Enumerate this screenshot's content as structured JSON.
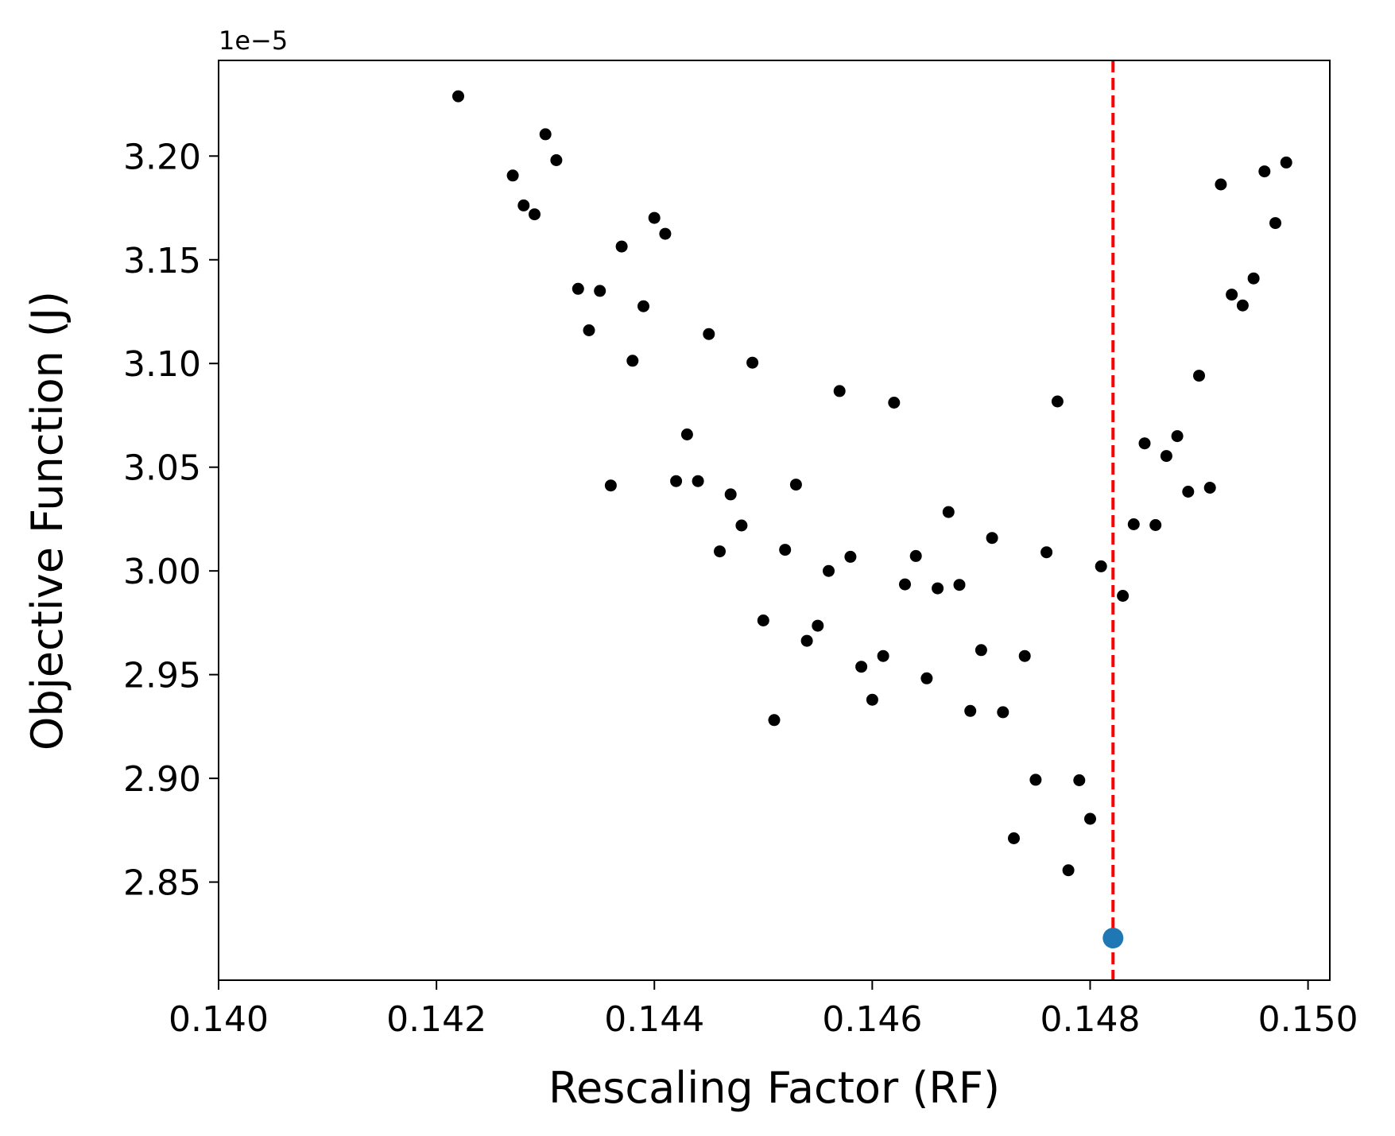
{
  "chart_data": {
    "type": "scatter",
    "title": "",
    "xlabel": "Rescaling Factor (RF)",
    "ylabel": "Objective Function (J)",
    "y_offset_text": "1e−5",
    "y_scale_factor": 1e-05,
    "xlim": [
      0.14,
      0.1502
    ],
    "ylim": [
      2.8027,
      3.2461
    ],
    "x_ticks": [
      0.14,
      0.142,
      0.144,
      0.146,
      0.148,
      0.15
    ],
    "x_tick_labels": [
      "0.140",
      "0.142",
      "0.144",
      "0.146",
      "0.148",
      "0.150"
    ],
    "y_ticks": [
      2.85,
      2.9,
      2.95,
      3.0,
      3.05,
      3.1,
      3.15,
      3.2
    ],
    "y_tick_labels": [
      "2.85",
      "2.90",
      "2.95",
      "3.00",
      "3.05",
      "3.10",
      "3.15",
      "3.20"
    ],
    "grid": false,
    "series": [
      {
        "color": "#000000",
        "points": [
          [
            0.1422,
            3.2288
          ],
          [
            0.1427,
            3.1906
          ],
          [
            0.1428,
            3.1762
          ],
          [
            0.1429,
            3.1719
          ],
          [
            0.143,
            3.2105
          ],
          [
            0.1431,
            3.198
          ],
          [
            0.1433,
            3.136
          ],
          [
            0.1434,
            3.116
          ],
          [
            0.1435,
            3.135
          ],
          [
            0.1436,
            3.0412
          ],
          [
            0.1437,
            3.1564
          ],
          [
            0.1438,
            3.1013
          ],
          [
            0.1439,
            3.1276
          ],
          [
            0.144,
            3.1702
          ],
          [
            0.1441,
            3.1625
          ],
          [
            0.1442,
            3.0433
          ],
          [
            0.1443,
            3.0658
          ],
          [
            0.1444,
            3.0433
          ],
          [
            0.1445,
            3.1142
          ],
          [
            0.1446,
            3.0094
          ],
          [
            0.1447,
            3.0369
          ],
          [
            0.1448,
            3.0219
          ],
          [
            0.1449,
            3.1004
          ],
          [
            0.145,
            2.9761
          ],
          [
            0.1451,
            2.9281
          ],
          [
            0.1452,
            3.0102
          ],
          [
            0.1453,
            3.0416
          ],
          [
            0.1454,
            2.9663
          ],
          [
            0.1455,
            2.9736
          ],
          [
            0.1456,
            3.0
          ],
          [
            0.1457,
            3.0867
          ],
          [
            0.1458,
            3.0068
          ],
          [
            0.1459,
            2.9538
          ],
          [
            0.146,
            2.9379
          ],
          [
            0.1461,
            2.959
          ],
          [
            0.1462,
            3.0811
          ],
          [
            0.1463,
            2.9935
          ],
          [
            0.1464,
            3.0072
          ],
          [
            0.1465,
            2.9482
          ],
          [
            0.1466,
            2.9916
          ],
          [
            0.1467,
            3.0284
          ],
          [
            0.1468,
            2.9933
          ],
          [
            0.1469,
            2.9325
          ],
          [
            0.147,
            2.9618
          ],
          [
            0.1471,
            3.0159
          ],
          [
            0.1472,
            2.9319
          ],
          [
            0.1473,
            2.8711
          ],
          [
            0.1474,
            2.959
          ],
          [
            0.1475,
            2.8993
          ],
          [
            0.1476,
            3.009
          ],
          [
            0.1477,
            3.0817
          ],
          [
            0.1478,
            2.8557
          ],
          [
            0.1479,
            2.8991
          ],
          [
            0.148,
            2.8805
          ],
          [
            0.1481,
            3.0022
          ],
          [
            0.1483,
            2.988
          ],
          [
            0.1484,
            3.0225
          ],
          [
            0.1485,
            3.0615
          ],
          [
            0.1486,
            3.0221
          ],
          [
            0.1487,
            3.0554
          ],
          [
            0.1488,
            3.065
          ],
          [
            0.1489,
            3.0382
          ],
          [
            0.149,
            3.0941
          ],
          [
            0.1491,
            3.0401
          ],
          [
            0.1492,
            3.1863
          ],
          [
            0.1493,
            3.1332
          ],
          [
            0.1494,
            3.128
          ],
          [
            0.1495,
            3.141
          ],
          [
            0.1496,
            3.1926
          ],
          [
            0.1497,
            3.1677
          ],
          [
            0.1498,
            3.1969
          ]
        ]
      },
      {
        "color": "#1f77b4",
        "points": [
          [
            0.14821,
            2.823
          ]
        ]
      }
    ],
    "vertical_line": {
      "x": 0.14821,
      "color": "#ff0000",
      "style": "dashed"
    }
  }
}
